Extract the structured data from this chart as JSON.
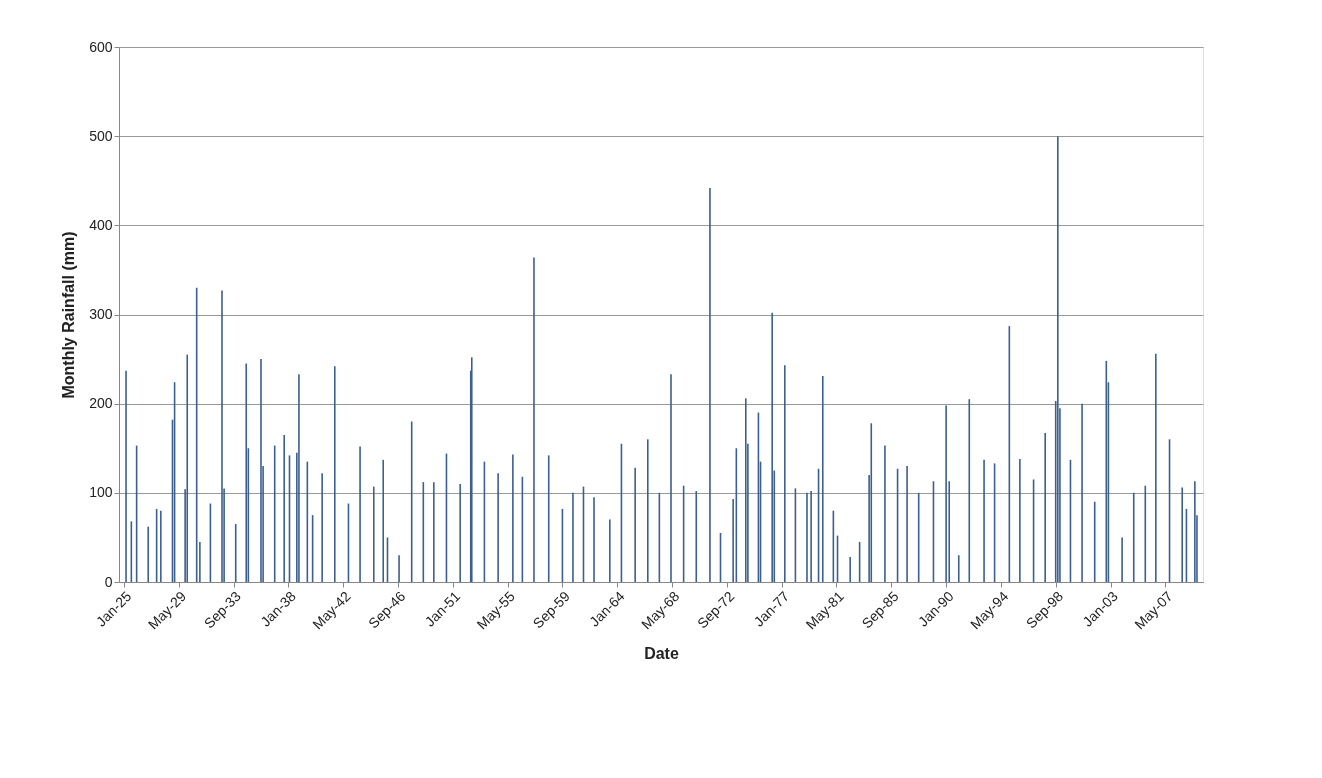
{
  "chart_data": {
    "type": "bar",
    "xlabel": "Date",
    "ylabel": "Monthly Rainfall (mm)",
    "x": [
      "1925-03",
      "1925-08",
      "1926-01",
      "1926-12",
      "1927-08",
      "1927-12",
      "1928-11",
      "1929-01",
      "1929-11",
      "1930-01",
      "1930-10",
      "1931-01",
      "1931-11",
      "1932-10",
      "1932-12",
      "1933-11",
      "1934-09",
      "1934-11",
      "1935-11",
      "1936-01",
      "1936-12",
      "1937-09",
      "1938-02",
      "1938-09",
      "1938-11",
      "1939-07",
      "1939-12",
      "1940-09",
      "1941-09",
      "1942-10",
      "1943-09",
      "1944-10",
      "1945-07",
      "1945-11",
      "1946-10",
      "1947-10",
      "1948-09",
      "1949-07",
      "1950-07",
      "1951-08",
      "1952-06",
      "1952-07",
      "1953-07",
      "1954-08",
      "1955-10",
      "1956-07",
      "1957-06",
      "1958-08",
      "1959-09",
      "1960-07",
      "1961-05",
      "1962-03",
      "1963-06",
      "1964-05",
      "1965-06",
      "1966-06",
      "1967-05",
      "1968-04",
      "1969-04",
      "1970-04",
      "1971-05",
      "1972-03",
      "1973-03",
      "1973-06",
      "1974-03",
      "1974-05",
      "1975-03",
      "1975-05",
      "1976-04",
      "1976-06",
      "1977-04",
      "1978-02",
      "1979-01",
      "1979-05",
      "1979-12",
      "1980-04",
      "1981-02",
      "1981-06",
      "1982-06",
      "1983-03",
      "1983-12",
      "1984-02",
      "1985-03",
      "1986-03",
      "1986-12",
      "1987-11",
      "1989-01",
      "1990-01",
      "1990-04",
      "1991-01",
      "1991-11",
      "1993-01",
      "1993-11",
      "1995-01",
      "1995-11",
      "1996-12",
      "1997-11",
      "1998-09",
      "1998-11",
      "1999-01",
      "1999-11",
      "2000-10",
      "2001-10",
      "2002-09",
      "2002-11",
      "2003-12",
      "2004-11",
      "2005-10",
      "2006-08",
      "2007-09",
      "2008-09",
      "2009-01",
      "2009-09",
      "2009-11"
    ],
    "values": [
      237,
      68,
      153,
      62,
      82,
      80,
      182,
      224,
      104,
      255,
      330,
      45,
      88,
      327,
      105,
      65,
      245,
      150,
      250,
      130,
      153,
      165,
      142,
      145,
      233,
      135,
      75,
      122,
      242,
      88,
      152,
      107,
      137,
      50,
      30,
      180,
      112,
      112,
      144,
      110,
      237,
      252,
      135,
      122,
      143,
      118,
      364,
      142,
      82,
      100,
      107,
      95,
      70,
      155,
      128,
      160,
      100,
      233,
      108,
      102,
      442,
      55,
      93,
      150,
      206,
      155,
      190,
      135,
      302,
      125,
      243,
      105,
      100,
      102,
      127,
      231,
      80,
      52,
      28,
      45,
      120,
      178,
      153,
      127,
      130,
      100,
      113,
      198,
      113,
      30,
      205,
      137,
      133,
      287,
      138,
      115,
      167,
      203,
      500,
      195,
      137,
      200,
      90,
      248,
      224,
      50,
      100,
      108,
      256,
      160,
      106,
      82,
      113,
      75
    ],
    "color": "#3b5f8f",
    "xlim": [
      "1925-01",
      "2009-12"
    ],
    "xticks": [
      {
        "value": "1925-01",
        "label": "Jan-25"
      },
      {
        "value": "1929-05",
        "label": "May-29"
      },
      {
        "value": "1933-09",
        "label": "Sep-33"
      },
      {
        "value": "1938-01",
        "label": "Jan-38"
      },
      {
        "value": "1942-05",
        "label": "May-42"
      },
      {
        "value": "1946-09",
        "label": "Sep-46"
      },
      {
        "value": "1951-01",
        "label": "Jan-51"
      },
      {
        "value": "1955-05",
        "label": "May-55"
      },
      {
        "value": "1959-09",
        "label": "Sep-59"
      },
      {
        "value": "1964-01",
        "label": "Jan-64"
      },
      {
        "value": "1968-05",
        "label": "May-68"
      },
      {
        "value": "1972-09",
        "label": "Sep-72"
      },
      {
        "value": "1977-01",
        "label": "Jan-77"
      },
      {
        "value": "1981-05",
        "label": "May-81"
      },
      {
        "value": "1985-09",
        "label": "Sep-85"
      },
      {
        "value": "1990-01",
        "label": "Jan-90"
      },
      {
        "value": "1994-05",
        "label": "May-94"
      },
      {
        "value": "1998-09",
        "label": "Sep-98"
      },
      {
        "value": "2003-01",
        "label": "Jan-03"
      },
      {
        "value": "2007-05",
        "label": "May-07"
      }
    ],
    "ylim": [
      0,
      600
    ],
    "yticks": [
      0,
      100,
      200,
      300,
      400,
      500,
      600
    ],
    "grid": "y"
  }
}
